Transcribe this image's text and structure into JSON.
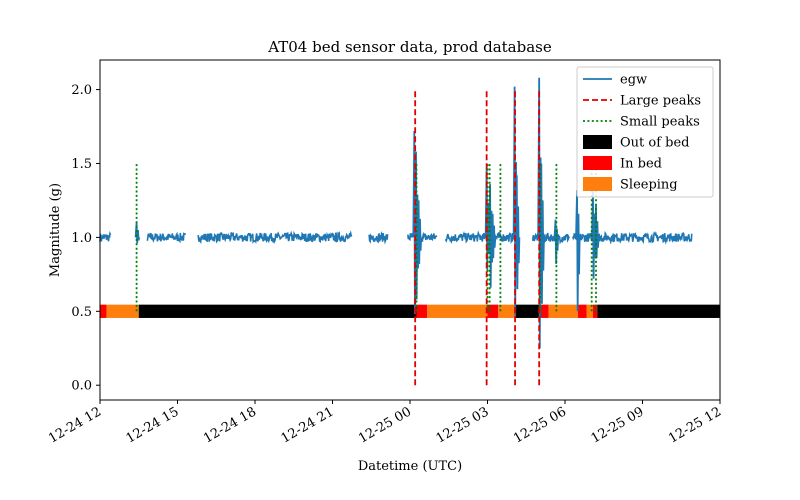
{
  "chart_data": {
    "type": "line",
    "title": "AT04 bed sensor data, prod database",
    "xlabel": "Datetime (UTC)",
    "ylabel": "Magnitude (g)",
    "xlim": [
      "2023-12-24T12:00",
      "2023-12-25T12:00"
    ],
    "ylim": [
      -0.1,
      2.2
    ],
    "x_ticks": [
      {
        "t": "2023-12-24T12:00",
        "label": "12-24 12"
      },
      {
        "t": "2023-12-24T15:00",
        "label": "12-24 15"
      },
      {
        "t": "2023-12-24T18:00",
        "label": "12-24 18"
      },
      {
        "t": "2023-12-24T21:00",
        "label": "12-24 21"
      },
      {
        "t": "2023-12-25T00:00",
        "label": "12-25 00"
      },
      {
        "t": "2023-12-25T03:00",
        "label": "12-25 03"
      },
      {
        "t": "2023-12-25T06:00",
        "label": "12-25 06"
      },
      {
        "t": "2023-12-25T09:00",
        "label": "12-25 09"
      },
      {
        "t": "2023-12-25T12:00",
        "label": "12-25 12"
      }
    ],
    "y_ticks": [
      {
        "v": 0.0,
        "label": "0.0"
      },
      {
        "v": 0.5,
        "label": "0.5"
      },
      {
        "v": 1.0,
        "label": "1.0"
      },
      {
        "v": 1.5,
        "label": "1.5"
      },
      {
        "v": 2.0,
        "label": "2.0"
      }
    ],
    "legend": {
      "position": "top-right",
      "entries": [
        {
          "label": "egw",
          "kind": "line",
          "color": "#1f77b4"
        },
        {
          "label": "Large peaks",
          "kind": "dashed",
          "color": "#e00000"
        },
        {
          "label": "Small peaks",
          "kind": "dotted",
          "color": "#008000"
        },
        {
          "label": "Out of bed",
          "kind": "patch",
          "color": "#000000"
        },
        {
          "label": "In bed",
          "kind": "patch",
          "color": "#ff0000"
        },
        {
          "label": "Sleeping",
          "kind": "patch",
          "color": "#ff7f0e"
        }
      ]
    },
    "egw": {
      "name": "egw",
      "color": "#1f77b4",
      "baseline": 1.0,
      "segments": [
        [
          "2023-12-24T12:00",
          "2023-12-24T12:25"
        ],
        [
          "2023-12-24T13:50",
          "2023-12-24T15:20"
        ],
        [
          "2023-12-24T15:48",
          "2023-12-24T21:45"
        ],
        [
          "2023-12-24T22:25",
          "2023-12-24T23:08"
        ],
        [
          "2023-12-24T23:55",
          "2023-12-25T01:03"
        ],
        [
          "2023-12-25T01:22",
          "2023-12-25T04:08"
        ],
        [
          "2023-12-25T04:45",
          "2023-12-25T06:10"
        ],
        [
          "2023-12-25T06:18",
          "2023-12-25T10:55"
        ]
      ],
      "spikes": [
        {
          "t": "2023-12-24T13:25",
          "min": 0.96,
          "max": 1.1
        },
        {
          "t": "2023-12-25T00:10",
          "min": 0.48,
          "max": 1.72
        },
        {
          "t": "2023-12-25T00:14",
          "min": 0.58,
          "max": 1.58
        },
        {
          "t": "2023-12-25T00:20",
          "min": 0.82,
          "max": 1.25
        },
        {
          "t": "2023-12-25T02:58",
          "min": 0.78,
          "max": 1.47
        },
        {
          "t": "2023-12-25T03:06",
          "min": 0.66,
          "max": 1.36
        },
        {
          "t": "2023-12-25T03:12",
          "min": 0.86,
          "max": 1.16
        },
        {
          "t": "2023-12-25T04:03",
          "min": 0.47,
          "max": 2.02
        },
        {
          "t": "2023-12-25T04:08",
          "min": 0.65,
          "max": 1.42
        },
        {
          "t": "2023-12-25T05:00",
          "min": 0.25,
          "max": 2.08
        },
        {
          "t": "2023-12-25T05:05",
          "min": 0.55,
          "max": 1.5
        },
        {
          "t": "2023-12-25T05:38",
          "min": 0.82,
          "max": 1.12
        },
        {
          "t": "2023-12-25T06:28",
          "min": 0.5,
          "max": 1.32
        },
        {
          "t": "2023-12-25T07:05",
          "min": 0.72,
          "max": 1.32
        },
        {
          "t": "2023-12-25T07:12",
          "min": 0.86,
          "max": 1.22
        }
      ]
    },
    "large_peaks": {
      "name": "Large peaks",
      "color": "#e00000",
      "ymin": 0.0,
      "ymax": 2.0,
      "x": [
        "2023-12-25T00:12",
        "2023-12-25T02:58",
        "2023-12-25T04:04",
        "2023-12-25T05:00"
      ]
    },
    "small_peaks": {
      "name": "Small peaks",
      "color": "#008000",
      "ymin": 0.5,
      "ymax": 1.5,
      "x": [
        "2023-12-24T13:25",
        "2023-12-25T00:15",
        "2023-12-25T03:00",
        "2023-12-25T03:05",
        "2023-12-25T03:30",
        "2023-12-25T05:02",
        "2023-12-25T05:40",
        "2023-12-25T07:02",
        "2023-12-25T07:12"
      ]
    },
    "bed_state": {
      "y": 0.5,
      "height": 0.09,
      "intervals": [
        {
          "start": "2023-12-24T12:00",
          "end": "2023-12-24T12:15",
          "state": "In bed"
        },
        {
          "start": "2023-12-24T12:15",
          "end": "2023-12-24T13:30",
          "state": "Sleeping"
        },
        {
          "start": "2023-12-24T13:30",
          "end": "2023-12-25T00:15",
          "state": "Out of bed"
        },
        {
          "start": "2023-12-25T00:15",
          "end": "2023-12-25T00:40",
          "state": "In bed"
        },
        {
          "start": "2023-12-25T00:40",
          "end": "2023-12-25T03:00",
          "state": "Sleeping"
        },
        {
          "start": "2023-12-25T03:00",
          "end": "2023-12-25T03:25",
          "state": "In bed"
        },
        {
          "start": "2023-12-25T03:25",
          "end": "2023-12-25T04:05",
          "state": "Sleeping"
        },
        {
          "start": "2023-12-25T04:05",
          "end": "2023-12-25T05:05",
          "state": "Out of bed"
        },
        {
          "start": "2023-12-25T05:05",
          "end": "2023-12-25T05:22",
          "state": "In bed"
        },
        {
          "start": "2023-12-25T05:22",
          "end": "2023-12-25T06:30",
          "state": "Sleeping"
        },
        {
          "start": "2023-12-25T06:30",
          "end": "2023-12-25T06:50",
          "state": "In bed"
        },
        {
          "start": "2023-12-25T06:50",
          "end": "2023-12-25T07:05",
          "state": "Sleeping"
        },
        {
          "start": "2023-12-25T07:05",
          "end": "2023-12-25T07:15",
          "state": "In bed"
        },
        {
          "start": "2023-12-25T07:15",
          "end": "2023-12-25T12:00",
          "state": "Out of bed"
        }
      ]
    },
    "state_colors": {
      "Out of bed": "#000000",
      "In bed": "#ff0000",
      "Sleeping": "#ff7f0e"
    }
  }
}
